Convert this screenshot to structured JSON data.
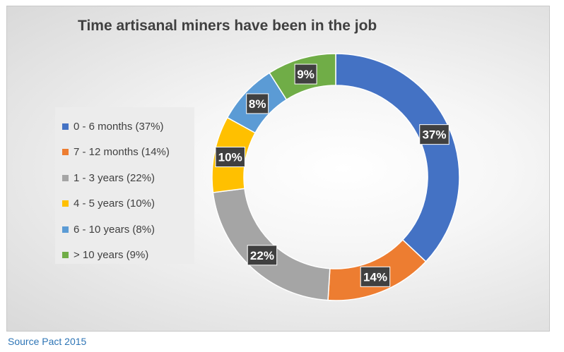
{
  "chart_data": {
    "type": "pie",
    "title": "Time artisanal miners have been in the job",
    "categories": [
      "0 - 6 months",
      "7 - 12 months",
      "1 - 3 years",
      "4 - 5 years",
      "6 - 10 years",
      "> 10 years"
    ],
    "values": [
      37,
      14,
      22,
      10,
      8,
      9
    ],
    "data_labels": [
      "37%",
      "14%",
      "22%",
      "10%",
      "8%",
      "9%"
    ],
    "legend_entries": [
      "0 - 6 months (37%)",
      "7 - 12 months (14%)",
      "1 - 3 years (22%)",
      "4 - 5 years (10%)",
      "6 - 10 years (8%)",
      "> 10 years (9%)"
    ],
    "colors": [
      "#4472c4",
      "#ed7d31",
      "#a5a5a5",
      "#ffc000",
      "#5b9bd5",
      "#70ad47"
    ],
    "style": "donut",
    "legend": "left"
  },
  "source": "Source Pact 2015"
}
